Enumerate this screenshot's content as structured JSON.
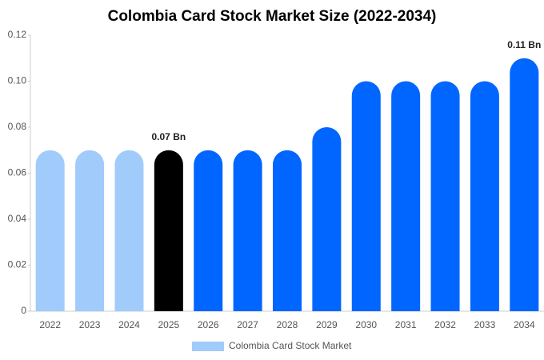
{
  "chart_data": {
    "type": "bar",
    "title": "Colombia Card Stock Market Size (2022-2034)",
    "categories": [
      "2022",
      "2023",
      "2024",
      "2025",
      "2026",
      "2027",
      "2028",
      "2029",
      "2030",
      "2031",
      "2032",
      "2033",
      "2034"
    ],
    "series": [
      {
        "name": "Colombia Card Stock Market",
        "color": "#a0cbfb",
        "values": [
          0.07,
          0.07,
          0.07,
          0.07,
          0.07,
          0.07,
          0.07,
          0.08,
          0.1,
          0.1,
          0.1,
          0.1,
          0.11
        ],
        "value_labels": [
          null,
          null,
          null,
          "0.07 Bn",
          null,
          null,
          null,
          null,
          null,
          null,
          null,
          null,
          "0.11 Bn"
        ],
        "bar_colors": [
          "#a0cbfb",
          "#a0cbfb",
          "#a0cbfb",
          "#000000",
          "#0066ff",
          "#0066ff",
          "#0066ff",
          "#0066ff",
          "#0066ff",
          "#0066ff",
          "#0066ff",
          "#0066ff",
          "#0066ff"
        ]
      }
    ],
    "ylim": [
      0,
      0.12
    ],
    "yticks": [
      0,
      0.02,
      0.04,
      0.06,
      0.08,
      {
        "value": 0.1,
        "label": "0.10"
      },
      0.12
    ],
    "grid": false,
    "legend": "bottom"
  }
}
